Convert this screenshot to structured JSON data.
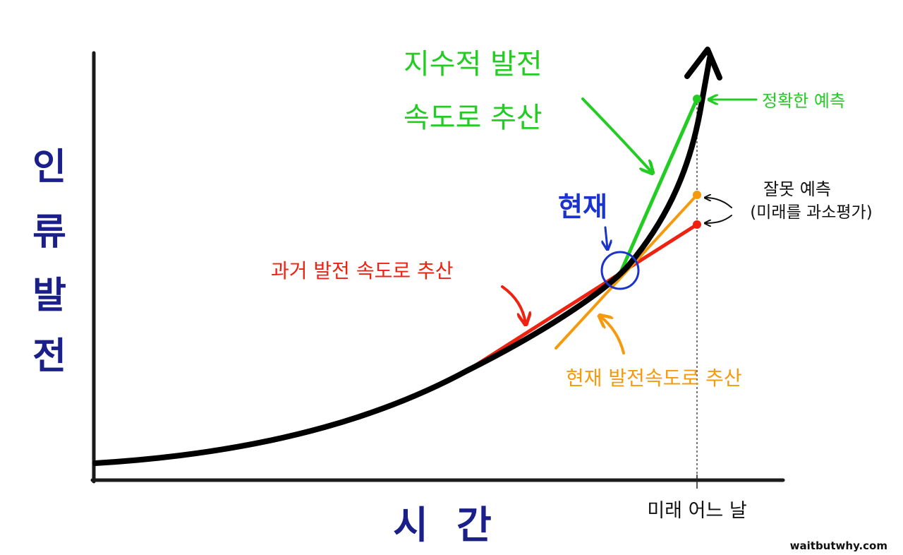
{
  "labels": {
    "y_axis": [
      "인",
      "류",
      "발",
      "전"
    ],
    "x_axis": [
      "시",
      "간"
    ],
    "future_day": "미래 어느 날",
    "present": "현재",
    "exponential_line1": "지수적 발전",
    "exponential_line2": "속도로 추산",
    "accurate_prediction": "정확한 예측",
    "wrong_prediction_line1": "잘못 예측",
    "wrong_prediction_line2": "(미래를 과소평가)",
    "past_rate": "과거 발전 속도로 추산",
    "current_rate": "현재 발전속도로 추산",
    "watermark": "waitbutwhy.com"
  },
  "colors": {
    "axis": "#1a1a1a",
    "curve": "#000000",
    "exponential": "#22cc22",
    "past": "#ee2211",
    "current": "#f59a0c",
    "present": "#1a33cc",
    "axis_title": "#1b1f8a",
    "text": "#111111"
  }
}
